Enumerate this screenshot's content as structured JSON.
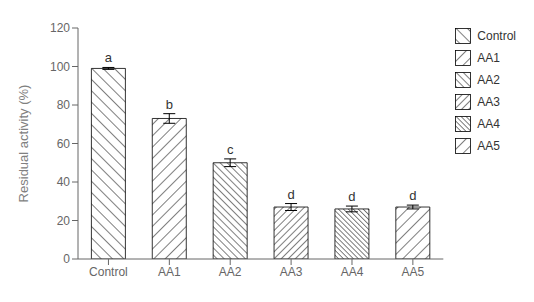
{
  "chart_data": {
    "type": "bar",
    "categories": [
      "Control",
      "AA1",
      "AA2",
      "AA3",
      "AA4",
      "AA5"
    ],
    "values": [
      99.0,
      73.0,
      50.0,
      27.0,
      26.0,
      27.0
    ],
    "errors": [
      0.5,
      2.5,
      2.0,
      1.8,
      1.5,
      1.0
    ],
    "annotations": [
      "a",
      "b",
      "c",
      "d",
      "d",
      "d"
    ],
    "ylabel": "Residual activity (%)",
    "ylim": [
      0,
      120
    ],
    "yticks": [
      0,
      20,
      40,
      60,
      80,
      100,
      120
    ],
    "color": "white",
    "legend": "right",
    "grid": false
  }
}
